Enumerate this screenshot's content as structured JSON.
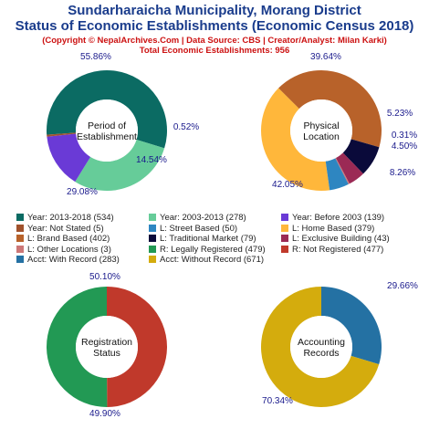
{
  "header": {
    "title_line1": "Sundarharaicha Municipality, Morang District",
    "title_line2": "Status of Economic Establishments (Economic Census 2018)",
    "credit": "(Copyright © NepalArchives.Com | Data Source: CBS | Creator/Analyst: Milan Karki)",
    "total": "Total Economic Establishments: 956"
  },
  "legend": [
    {
      "label": "Year: 2013-2018 (534)",
      "color": "#0b6b63"
    },
    {
      "label": "Year: 2003-2013 (278)",
      "color": "#66cc99"
    },
    {
      "label": "Year: Before 2003 (139)",
      "color": "#6a3ad6"
    },
    {
      "label": "Year: Not Stated (5)",
      "color": "#a0522d"
    },
    {
      "label": "L: Street Based (50)",
      "color": "#2e86c1"
    },
    {
      "label": "L: Home Based (379)",
      "color": "#ffb73b"
    },
    {
      "label": "L: Brand Based (402)",
      "color": "#b8622a"
    },
    {
      "label": "L: Traditional Market (79)",
      "color": "#0a0a3a"
    },
    {
      "label": "L: Exclusive Building (43)",
      "color": "#9b2a55"
    },
    {
      "label": "L: Other Locations (3)",
      "color": "#cc7777"
    },
    {
      "label": "R: Legally Registered (479)",
      "color": "#229954"
    },
    {
      "label": "R: Not Registered (477)",
      "color": "#c0392b"
    },
    {
      "label": "Acct: With Record (283)",
      "color": "#2471a3"
    },
    {
      "label": "Acct: Without Record (671)",
      "color": "#d4ac0d"
    }
  ],
  "chart_data": [
    {
      "type": "pie",
      "center_label": [
        "Period of",
        "Establishment"
      ],
      "slices": [
        {
          "name": "Year: 2013-2018",
          "value": 534,
          "label": "55.86%",
          "color": "#0b6b63"
        },
        {
          "name": "Year: 2003-2013",
          "value": 278,
          "label": "29.08%",
          "color": "#66cc99"
        },
        {
          "name": "Year: Before 2003",
          "value": 139,
          "label": "14.54%",
          "color": "#6a3ad6"
        },
        {
          "name": "Year: Not Stated",
          "value": 5,
          "label": "0.52%",
          "color": "#a0522d"
        }
      ]
    },
    {
      "type": "pie",
      "center_label": [
        "Physical",
        "Location"
      ],
      "slices": [
        {
          "name": "L: Home Based",
          "value": 379,
          "label": "39.64%",
          "color": "#ffb73b"
        },
        {
          "name": "L: Brand Based",
          "value": 402,
          "label": "42.05%",
          "color": "#b8622a"
        },
        {
          "name": "L: Traditional Market",
          "value": 79,
          "label": "8.26%",
          "color": "#0a0a3a"
        },
        {
          "name": "L: Exclusive Building",
          "value": 43,
          "label": "4.50%",
          "color": "#9b2a55"
        },
        {
          "name": "L: Other Locations",
          "value": 3,
          "label": "0.31%",
          "color": "#cc7777"
        },
        {
          "name": "L: Street Based",
          "value": 50,
          "label": "5.23%",
          "color": "#2e86c1"
        }
      ]
    },
    {
      "type": "pie",
      "center_label": [
        "Registration",
        "Status"
      ],
      "slices": [
        {
          "name": "R: Legally Registered",
          "value": 479,
          "label": "50.10%",
          "color": "#229954"
        },
        {
          "name": "R: Not Registered",
          "value": 477,
          "label": "49.90%",
          "color": "#c0392b"
        }
      ]
    },
    {
      "type": "pie",
      "center_label": [
        "Accounting",
        "Records"
      ],
      "slices": [
        {
          "name": "Acct: With Record",
          "value": 283,
          "label": "29.66%",
          "color": "#2471a3"
        },
        {
          "name": "Acct: Without Record",
          "value": 671,
          "label": "70.34%",
          "color": "#d4ac0d"
        }
      ]
    }
  ]
}
